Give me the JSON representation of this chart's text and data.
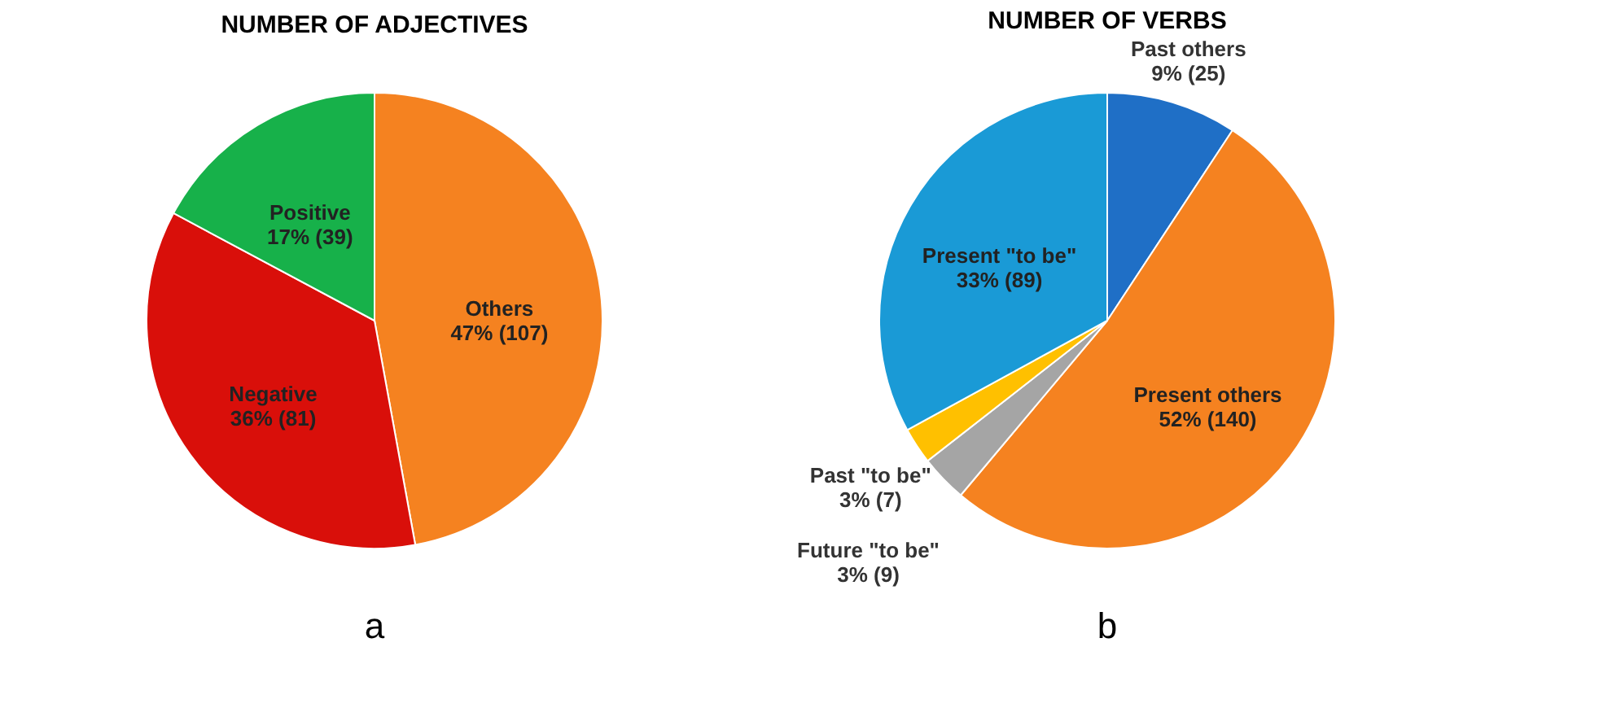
{
  "chart_data": [
    {
      "type": "pie",
      "title": "NUMBER OF ADJECTIVES",
      "categories": [
        "Others",
        "Negative",
        "Positive"
      ],
      "values": [
        107,
        81,
        39
      ],
      "colors": [
        "#f58220",
        "#d90f0a",
        "#17b14a"
      ],
      "value_labels": [
        "47% (107)",
        "36% (81)",
        "17% (39)"
      ],
      "annotations": [
        "a"
      ]
    },
    {
      "type": "pie",
      "title": "NUMBER OF VERBS",
      "categories": [
        "Past others",
        "Present others",
        "Future \"to be\"",
        "Past \"to be\"",
        "Present \"to be\""
      ],
      "values": [
        25,
        140,
        9,
        7,
        89
      ],
      "colors": [
        "#1f6fc6",
        "#f58220",
        "#a5a5a5",
        "#ffc000",
        "#1a9ad6"
      ],
      "value_labels": [
        "9% (25)",
        "52% (140)",
        "3% (9)",
        "3% (7)",
        "33% (89)"
      ],
      "annotations": [
        "b"
      ]
    }
  ]
}
